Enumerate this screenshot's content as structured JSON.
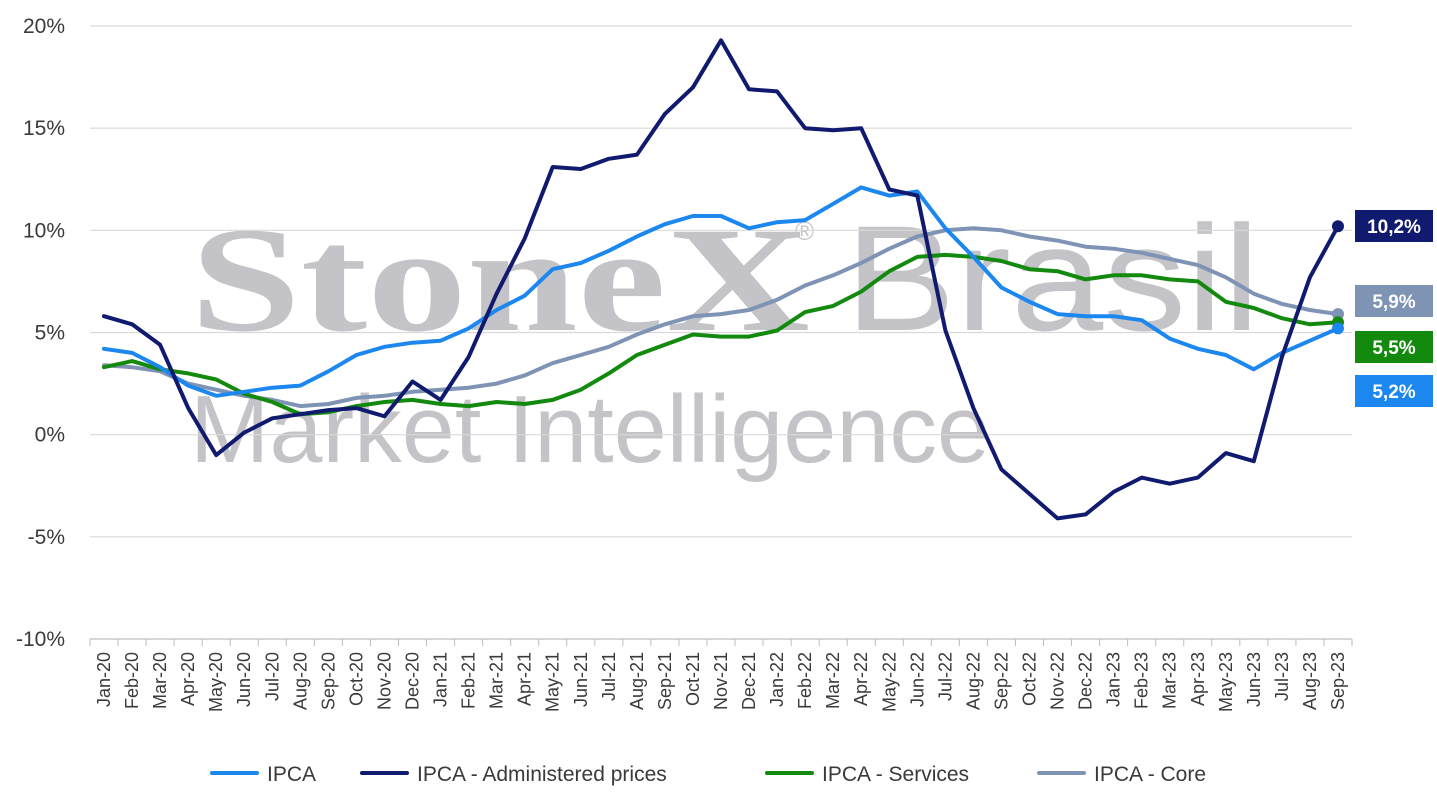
{
  "watermark": {
    "brand": "StoneX",
    "suffix": "Brasil",
    "tagline": "Market Intelligence",
    "registered": "®"
  },
  "chart_data": {
    "type": "line",
    "title": "",
    "xlabel": "",
    "ylabel": "",
    "ylim": [
      -10,
      20
    ],
    "y_ticks": [
      20,
      15,
      10,
      5,
      0,
      -5,
      -10
    ],
    "y_tick_labels": [
      "20%",
      "15%",
      "10%",
      "5%",
      "0%",
      "-5%",
      "-10%"
    ],
    "grid": true,
    "legend_position": "bottom",
    "categories": [
      "Jan-20",
      "Feb-20",
      "Mar-20",
      "Apr-20",
      "May-20",
      "Jun-20",
      "Jul-20",
      "Aug-20",
      "Sep-20",
      "Oct-20",
      "Nov-20",
      "Dec-20",
      "Jan-21",
      "Feb-21",
      "Mar-21",
      "Apr-21",
      "May-21",
      "Jun-21",
      "Jul-21",
      "Aug-21",
      "Sep-21",
      "Oct-21",
      "Nov-21",
      "Dec-21",
      "Jan-22",
      "Feb-22",
      "Mar-22",
      "Apr-22",
      "May-22",
      "Jun-22",
      "Jul-22",
      "Aug-22",
      "Sep-22",
      "Oct-22",
      "Nov-22",
      "Dec-22",
      "Jan-23",
      "Feb-23",
      "Mar-23",
      "Apr-23",
      "May-23",
      "Jun-23",
      "Jul-23",
      "Aug-23",
      "Sep-23"
    ],
    "x_tick_labels": [
      "Jan-20",
      "Feb-20",
      "Mar-20",
      "Apr-20",
      "May-20",
      "Jun-20",
      "Jul-20",
      "Aug-20",
      "Sep-20",
      "Oct-20",
      "Nov-20",
      "Dec-20",
      "Jan-21",
      "Feb-21",
      "Mar-21",
      "Apr-21",
      "May-21",
      "Jun-21",
      "Jul-21",
      "Aug-21",
      "Sep-21",
      "Oct-21",
      "Nov-21",
      "Dec-21",
      "Jan-22",
      "Feb-22",
      "Mar-22",
      "Apr-22",
      "May-22",
      "Jun-22",
      "Jul-22",
      "Aug-22",
      "Sep-22",
      "Oct-22",
      "Nov-22",
      "Dec-22",
      "Jan-23",
      "Feb-23",
      "Mar-23",
      "Apr-23",
      "May-23",
      "Jun-23",
      "Jul-23",
      "Aug-23",
      "Sep-23"
    ],
    "series": [
      {
        "name": "IPCA - Core",
        "color": "#7f93b4",
        "values": [
          3.4,
          3.3,
          3.1,
          2.5,
          2.2,
          1.9,
          1.7,
          1.4,
          1.5,
          1.8,
          1.9,
          2.1,
          2.2,
          2.3,
          2.5,
          2.9,
          3.5,
          3.9,
          4.3,
          4.9,
          5.4,
          5.8,
          5.9,
          6.1,
          6.6,
          7.3,
          7.8,
          8.4,
          9.1,
          9.7,
          10.0,
          10.1,
          10.0,
          9.7,
          9.5,
          9.2,
          9.1,
          8.9,
          8.6,
          8.3,
          7.7,
          6.9,
          6.4,
          6.1,
          5.9
        ]
      },
      {
        "name": "IPCA - Services",
        "color": "#138a0e",
        "values": [
          3.3,
          3.6,
          3.2,
          3.0,
          2.7,
          2.0,
          1.6,
          1.0,
          1.1,
          1.4,
          1.6,
          1.7,
          1.5,
          1.4,
          1.6,
          1.5,
          1.7,
          2.2,
          3.0,
          3.9,
          4.4,
          4.9,
          4.8,
          4.8,
          5.1,
          6.0,
          6.3,
          7.0,
          8.0,
          8.7,
          8.8,
          8.7,
          8.5,
          8.1,
          8.0,
          7.6,
          7.8,
          7.8,
          7.6,
          7.5,
          6.5,
          6.2,
          5.7,
          5.4,
          5.5
        ]
      },
      {
        "name": "IPCA",
        "color": "#1c87ef",
        "values": [
          4.2,
          4.0,
          3.3,
          2.4,
          1.9,
          2.1,
          2.3,
          2.4,
          3.1,
          3.9,
          4.3,
          4.5,
          4.6,
          5.2,
          6.1,
          6.8,
          8.1,
          8.4,
          9.0,
          9.7,
          10.3,
          10.7,
          10.7,
          10.1,
          10.4,
          10.5,
          11.3,
          12.1,
          11.7,
          11.9,
          10.1,
          8.7,
          7.2,
          6.5,
          5.9,
          5.8,
          5.8,
          5.6,
          4.7,
          4.2,
          3.9,
          3.2,
          4.0,
          4.6,
          5.2
        ]
      },
      {
        "name": "IPCA - Administered prices",
        "color": "#101a6e",
        "values": [
          5.8,
          5.4,
          4.4,
          1.3,
          -1.0,
          0.1,
          0.8,
          1.0,
          1.2,
          1.3,
          0.9,
          2.6,
          1.7,
          3.8,
          6.9,
          9.6,
          13.1,
          13.0,
          13.5,
          13.7,
          15.7,
          17.0,
          19.3,
          16.9,
          16.8,
          15.0,
          14.9,
          15.0,
          12.0,
          11.7,
          5.1,
          1.3,
          -1.7,
          -2.9,
          -4.1,
          -3.9,
          -2.8,
          -2.1,
          -2.4,
          -2.1,
          -0.9,
          -1.3,
          3.8,
          7.7,
          10.2
        ]
      }
    ],
    "legend": [
      {
        "name": "IPCA",
        "color": "#1c87ef"
      },
      {
        "name": "IPCA - Administered prices",
        "color": "#101a6e"
      },
      {
        "name": "IPCA - Services",
        "color": "#138a0e"
      },
      {
        "name": "IPCA - Core",
        "color": "#7f93b4"
      }
    ],
    "end_labels": [
      {
        "text": "10,2%",
        "value": 10.2,
        "color": "#101a6e"
      },
      {
        "text": "5,9%",
        "value": 5.9,
        "color": "#7f93b4"
      },
      {
        "text": "5,5%",
        "value": 5.5,
        "color": "#138a0e"
      },
      {
        "text": "5,2%",
        "value": 5.2,
        "color": "#1c87ef"
      }
    ]
  }
}
